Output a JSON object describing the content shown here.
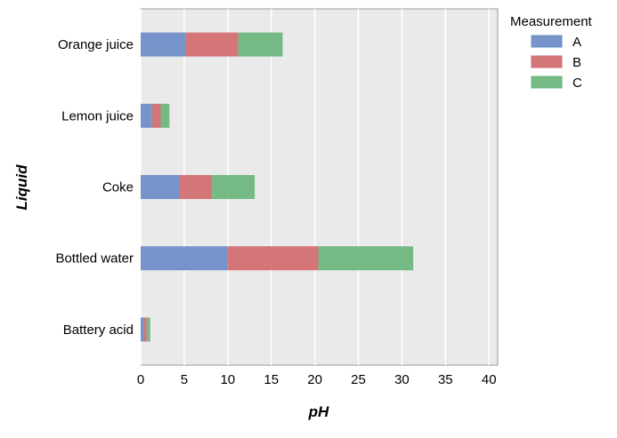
{
  "chart_data": {
    "type": "bar",
    "orientation": "horizontal",
    "stacked": true,
    "categories": [
      "Battery acid",
      "Bottled water",
      "Coke",
      "Lemon juice",
      "Orange juice"
    ],
    "series": [
      {
        "name": "A",
        "color": "#6b8cc6",
        "values": [
          0.4,
          10.0,
          4.5,
          1.3,
          5.2
        ]
      },
      {
        "name": "B",
        "color": "#d16a6e",
        "values": [
          0.3,
          10.4,
          3.7,
          1.0,
          6.0
        ]
      },
      {
        "name": "C",
        "color": "#6ab57b",
        "values": [
          0.4,
          10.9,
          4.9,
          1.0,
          5.1
        ]
      }
    ],
    "xlabel": "pH",
    "ylabel": "Liquid",
    "xlim": [
      0,
      41
    ],
    "xticks": [
      0,
      5,
      10,
      15,
      20,
      25,
      30,
      35,
      40
    ],
    "grid": true,
    "legend": {
      "title": "Measurement",
      "placement": "outside-top-right"
    }
  }
}
